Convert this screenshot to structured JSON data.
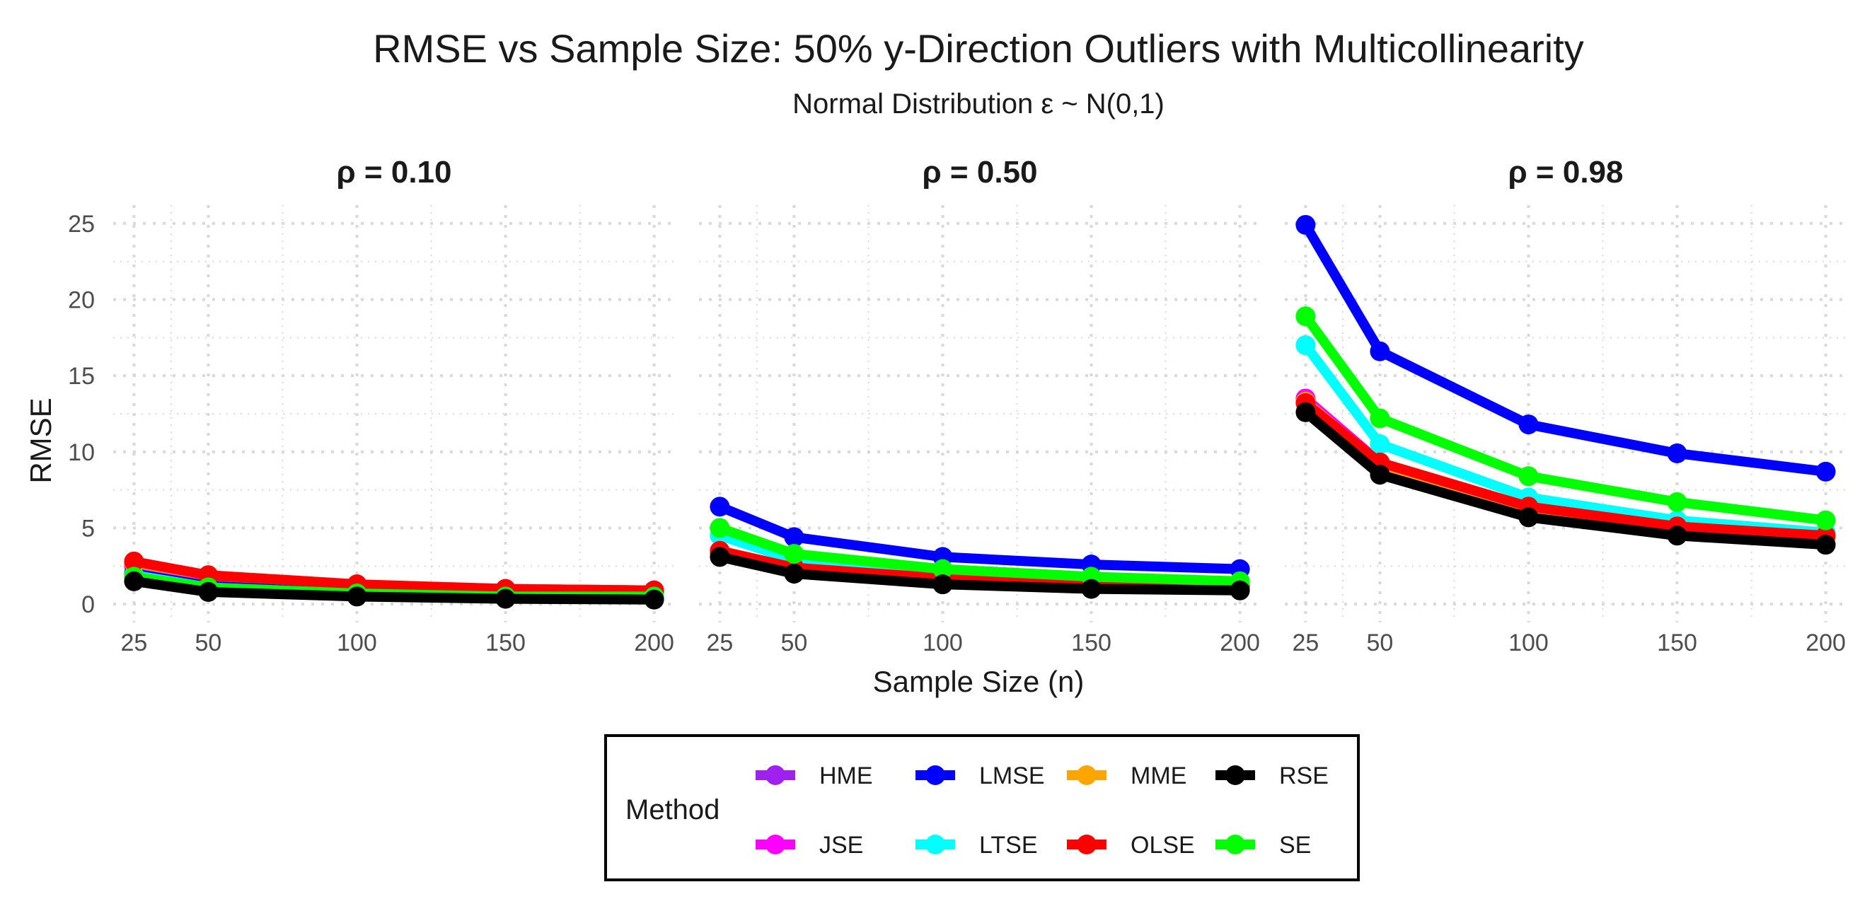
{
  "chart_data": {
    "type": "line",
    "title": "RMSE vs Sample Size: 50% y-Direction Outliers with Multicollinearity",
    "subtitle": "Normal Distribution ε ~ N(0,1)",
    "xlabel": "Sample Size (n)",
    "ylabel": "RMSE",
    "x": [
      25,
      50,
      100,
      150,
      200
    ],
    "x_tick_labels": [
      "25",
      "50",
      "100",
      "150",
      "200"
    ],
    "xlim": [
      18,
      207
    ],
    "ylim": [
      -1.2,
      26.2
    ],
    "y_ticks": [
      0,
      5,
      10,
      15,
      20,
      25
    ],
    "y_tick_labels": [
      "0",
      "5",
      "10",
      "15",
      "20",
      "25"
    ],
    "grid": true,
    "legend": {
      "title": "Method",
      "position": "bottom",
      "entries": [
        "HME",
        "LMSE",
        "MME",
        "RSE",
        "JSE",
        "LTSE",
        "OLSE",
        "SE"
      ]
    },
    "colors": {
      "HME": "#a020f0",
      "JSE": "#ff00ff",
      "LMSE": "#0000ff",
      "LTSE": "#00ffff",
      "MME": "#ffa500",
      "OLSE": "#ff0000",
      "RSE": "#000000",
      "SE": "#00ff00"
    },
    "draw_order": [
      "HME",
      "JSE",
      "LMSE",
      "LTSE",
      "MME",
      "OLSE",
      "SE",
      "RSE"
    ],
    "panels": [
      {
        "title": "ρ = 0.10",
        "series": [
          {
            "name": "HME",
            "values": [
              2.5,
              1.7,
              1.1,
              0.9,
              0.8
            ]
          },
          {
            "name": "JSE",
            "values": [
              2.6,
              1.8,
              1.2,
              1.0,
              0.9
            ]
          },
          {
            "name": "LMSE",
            "values": [
              2.0,
              1.2,
              0.7,
              0.5,
              0.4
            ]
          },
          {
            "name": "LTSE",
            "values": [
              1.9,
              1.1,
              0.6,
              0.5,
              0.4
            ]
          },
          {
            "name": "MME",
            "values": [
              2.7,
              1.9,
              1.3,
              1.0,
              0.9
            ]
          },
          {
            "name": "OLSE",
            "values": [
              2.8,
              1.9,
              1.3,
              1.0,
              0.9
            ]
          },
          {
            "name": "SE",
            "values": [
              1.8,
              1.1,
              0.7,
              0.5,
              0.5
            ]
          },
          {
            "name": "RSE",
            "values": [
              1.5,
              0.8,
              0.5,
              0.35,
              0.3
            ]
          }
        ]
      },
      {
        "title": "ρ = 0.50",
        "series": [
          {
            "name": "HME",
            "values": [
              3.4,
              2.3,
              1.6,
              1.3,
              1.1
            ]
          },
          {
            "name": "JSE",
            "values": [
              3.5,
              2.4,
              1.7,
              1.4,
              1.2
            ]
          },
          {
            "name": "LMSE",
            "values": [
              6.4,
              4.4,
              3.1,
              2.6,
              2.3
            ]
          },
          {
            "name": "LTSE",
            "values": [
              4.5,
              2.9,
              2.0,
              1.6,
              1.4
            ]
          },
          {
            "name": "MME",
            "values": [
              3.5,
              2.4,
              1.7,
              1.4,
              1.2
            ]
          },
          {
            "name": "OLSE",
            "values": [
              3.5,
              2.4,
              1.7,
              1.4,
              1.2
            ]
          },
          {
            "name": "SE",
            "values": [
              5.0,
              3.3,
              2.3,
              1.8,
              1.5
            ]
          },
          {
            "name": "RSE",
            "values": [
              3.1,
              2.0,
              1.3,
              1.0,
              0.9
            ]
          }
        ]
      },
      {
        "title": "ρ = 0.98",
        "series": [
          {
            "name": "HME",
            "values": [
              13.4,
              9.2,
              6.2,
              5.0,
              4.4
            ]
          },
          {
            "name": "JSE",
            "values": [
              13.5,
              9.3,
              6.3,
              5.1,
              4.5
            ]
          },
          {
            "name": "LMSE",
            "values": [
              24.9,
              16.6,
              11.8,
              9.9,
              8.7
            ]
          },
          {
            "name": "LTSE",
            "values": [
              17.0,
              10.5,
              7.0,
              5.5,
              4.7
            ]
          },
          {
            "name": "MME",
            "values": [
              13.3,
              9.2,
              6.3,
              5.1,
              4.4
            ]
          },
          {
            "name": "OLSE",
            "values": [
              13.2,
              9.3,
              6.4,
              5.1,
              4.5
            ]
          },
          {
            "name": "SE",
            "values": [
              18.9,
              12.2,
              8.4,
              6.7,
              5.5
            ]
          },
          {
            "name": "RSE",
            "values": [
              12.6,
              8.5,
              5.7,
              4.5,
              3.9
            ]
          }
        ]
      }
    ]
  }
}
